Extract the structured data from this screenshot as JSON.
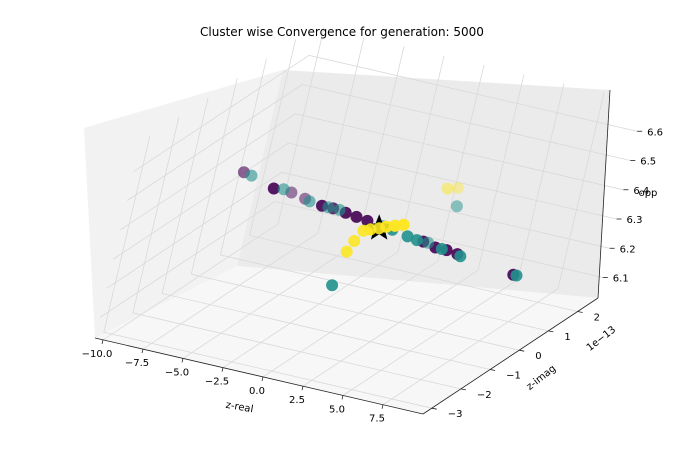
{
  "chart_data": {
    "type": "scatter",
    "projection": "3d",
    "title": "Cluster wise Convergence for generation: 5000",
    "xlabel": "z-real",
    "ylabel": "z-imag",
    "zlabel": "opp",
    "y_offset_label": "1e−13",
    "x_ticks": [
      "−10.0",
      "−7.5",
      "−5.0",
      "−2.5",
      "0.0",
      "2.5",
      "5.0",
      "7.5"
    ],
    "y_ticks": [
      "−3",
      "−2",
      "−1",
      "0",
      "1",
      "2"
    ],
    "z_ticks": [
      "6.1",
      "6.2",
      "6.3",
      "6.4",
      "6.5",
      "6.6"
    ],
    "xlim": [
      -10.5,
      10
    ],
    "ylim": [
      -3.3,
      2.7
    ],
    "zlim": [
      6.03,
      6.7
    ],
    "grid": true,
    "colors": {
      "purple": "#440154",
      "teal": "#21918c",
      "yellow": "#fde725",
      "star": "#000000",
      "pane_left": "#f2f2f2",
      "pane_back": "#ebebeb",
      "pane_floor": "#f7f7f7",
      "grid": "#d9d9d9"
    },
    "series": [
      {
        "color": "purple",
        "points": [
          [
            -8.8,
            0.0,
            6.4,
            0.6
          ],
          [
            -6.8,
            0.0,
            6.37,
            0.9
          ],
          [
            -5.7,
            0.0,
            6.37,
            0.5
          ],
          [
            -4.8,
            0.0,
            6.36,
            0.5
          ],
          [
            -3.7,
            0.0,
            6.35,
            0.9
          ],
          [
            -3.0,
            0.0,
            6.35,
            0.8
          ],
          [
            -2.2,
            0.0,
            6.345,
            0.9
          ],
          [
            -1.5,
            0.0,
            6.34,
            0.9
          ],
          [
            -0.8,
            0.0,
            6.335,
            0.9
          ],
          [
            2.8,
            0.0,
            6.31,
            0.9
          ],
          [
            3.6,
            0.0,
            6.3,
            0.9
          ],
          [
            4.3,
            0.0,
            6.3,
            0.9
          ],
          [
            5.0,
            0.0,
            6.295,
            0.9
          ],
          [
            8.6,
            0.0,
            6.27,
            0.9
          ]
        ]
      },
      {
        "color": "teal",
        "points": [
          [
            -8.3,
            0.0,
            6.395,
            0.6
          ],
          [
            -6.2,
            0.0,
            6.375,
            0.6
          ],
          [
            -4.5,
            0.0,
            6.355,
            0.6
          ],
          [
            -3.3,
            0.0,
            6.35,
            0.6
          ],
          [
            -2.6,
            0.0,
            6.35,
            0.6
          ],
          [
            0.2,
            0.0,
            6.33,
            0.6
          ],
          [
            0.8,
            0.0,
            6.325,
            0.9
          ],
          [
            1.8,
            0.0,
            6.315,
            0.9
          ],
          [
            2.4,
            0.0,
            6.31,
            0.9
          ],
          [
            3.1,
            0.0,
            6.31,
            0.6
          ],
          [
            4.0,
            0.0,
            6.3,
            0.9
          ],
          [
            5.2,
            0.0,
            6.29,
            0.9
          ],
          [
            8.8,
            0.0,
            6.27,
            0.9
          ],
          [
            4.3,
            0.0,
            6.45,
            0.5
          ],
          [
            -2.0,
            0.0,
            6.1,
            0.9
          ]
        ]
      },
      {
        "color": "yellow",
        "points": [
          [
            -1.6,
            0.0,
            6.22,
            0.9
          ],
          [
            -1.3,
            0.0,
            6.26,
            0.9
          ],
          [
            -0.9,
            0.0,
            6.3,
            0.9
          ],
          [
            -0.5,
            0.0,
            6.31,
            0.9
          ],
          [
            0.0,
            0.0,
            6.32,
            0.9
          ],
          [
            0.4,
            0.0,
            6.33,
            0.9
          ],
          [
            0.9,
            0.0,
            6.34,
            0.9
          ],
          [
            1.4,
            0.0,
            6.35,
            0.9
          ],
          [
            3.5,
            0.0,
            6.5,
            0.5
          ],
          [
            4.1,
            0.0,
            6.51,
            0.4
          ]
        ]
      }
    ],
    "marker_star": [
      0.0,
      0.0,
      6.32
    ]
  }
}
